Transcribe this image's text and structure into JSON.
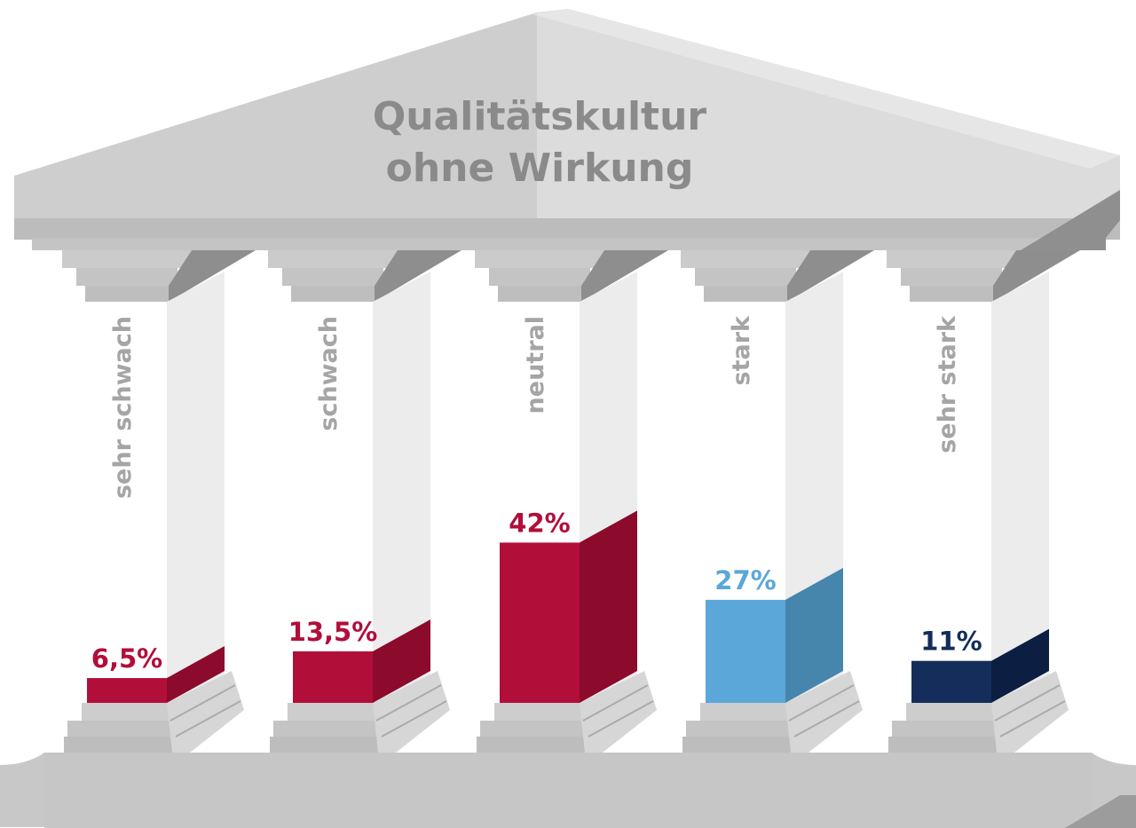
{
  "chart_data": {
    "type": "bar",
    "title_lines": [
      "Qualitätskultur",
      "ohne Wirkung"
    ],
    "categories": [
      "sehr schwach",
      "schwach",
      "neutral",
      "stark",
      "sehr stark"
    ],
    "values": [
      6.5,
      13.5,
      42,
      27,
      11
    ],
    "value_labels": [
      "6,5%",
      "13,5%",
      "42%",
      "27%",
      "11%"
    ],
    "unit": "%",
    "ylim": [
      0,
      100
    ],
    "colors": [
      {
        "front": "#b20e3a",
        "side": "#8c0a2c",
        "label": "#b20e3a"
      },
      {
        "front": "#b20e3a",
        "side": "#8c0a2c",
        "label": "#b20e3a"
      },
      {
        "front": "#b20e3a",
        "side": "#8c0a2c",
        "label": "#b20e3a"
      },
      {
        "front": "#5ba7d9",
        "side": "#4786ac",
        "label": "#5ba7d9"
      },
      {
        "front": "#142d5a",
        "side": "#0c1f42",
        "label": "#142d5a"
      }
    ]
  }
}
